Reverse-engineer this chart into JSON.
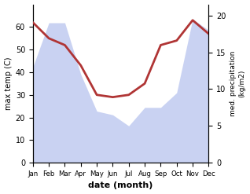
{
  "months": [
    "Jan",
    "Feb",
    "Mar",
    "Apr",
    "May",
    "Jun",
    "Jul",
    "Aug",
    "Sep",
    "Oct",
    "Nov",
    "Dec"
  ],
  "month_indices": [
    0,
    1,
    2,
    3,
    4,
    5,
    6,
    7,
    8,
    9,
    10,
    11
  ],
  "temperature": [
    62,
    55,
    52,
    43,
    30,
    29,
    30,
    35,
    52,
    54,
    63,
    57
  ],
  "precipitation": [
    13,
    19,
    19,
    12,
    7,
    6.5,
    5,
    7.5,
    7.5,
    9.5,
    19.5,
    18
  ],
  "temp_color": "#b03535",
  "precip_fill_color": "#b8c4ee",
  "temp_ylim": [
    0,
    70
  ],
  "precip_ylim": [
    0,
    21.5
  ],
  "temp_yticks": [
    0,
    10,
    20,
    30,
    40,
    50,
    60
  ],
  "precip_yticks": [
    0,
    5,
    10,
    15,
    20
  ],
  "xlabel": "date (month)",
  "ylabel_left": "max temp (C)",
  "ylabel_right": "med. precipitation\n(kg/m2)",
  "background_color": "#ffffff"
}
